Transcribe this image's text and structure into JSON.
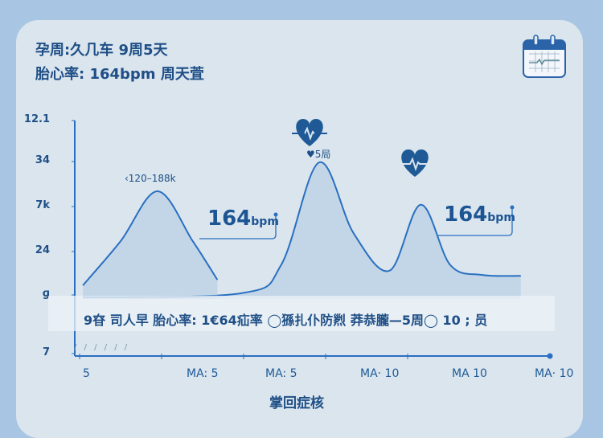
{
  "header": {
    "line1": "孕周:久几车 9周5天",
    "line2": "胎心率: 164bpm   周天萓",
    "calendar_icon": "calendar-heartbeat-icon"
  },
  "colors": {
    "background": "#a8c6e3",
    "card": "#dae5ee",
    "line": "#2a6fc0",
    "text": "#1f4f86",
    "heart": "#1f5a96"
  },
  "chart_data": {
    "type": "area",
    "title": "",
    "xlabel": "掌回症核",
    "ylabel": "",
    "x_tick_labels": [
      "5",
      "MA: 5",
      "MA: 5",
      "MA· 10",
      "MA 10",
      "MA· 10"
    ],
    "y_tick_labels": [
      "7",
      "ɡ",
      "24",
      "7k",
      "34",
      "12.1"
    ],
    "grid": false,
    "series": [
      {
        "x": [
          0.04,
          0.5,
          0.95,
          1.38,
          1.68
        ],
        "y": [
          1.22,
          2.23,
          3.34,
          2.23,
          1.35
        ]
      },
      {
        "x": [
          0.04,
          1.97,
          2.46,
          2.92,
          3.34,
          3.78,
          4.16,
          4.52,
          4.91,
          5.38
        ],
        "y": [
          0.96,
          1.04,
          1.7,
          3.98,
          2.41,
          1.56,
          3.04,
          1.69,
          1.46,
          1.44
        ]
      }
    ],
    "annotations": {
      "range_label": "‹120–188k",
      "peak_label": "♥5局",
      "callout1_value": "164",
      "callout1_unit": "bpm",
      "callout2_value": "164",
      "callout2_unit": "bpm",
      "band_text": "9昚 司人早   胎心率: 1€64疝率   ◯猻扎仆防煭 莽恭朧—5周◯ 10 ; 员",
      "dashes": "/ / / / / /"
    }
  }
}
